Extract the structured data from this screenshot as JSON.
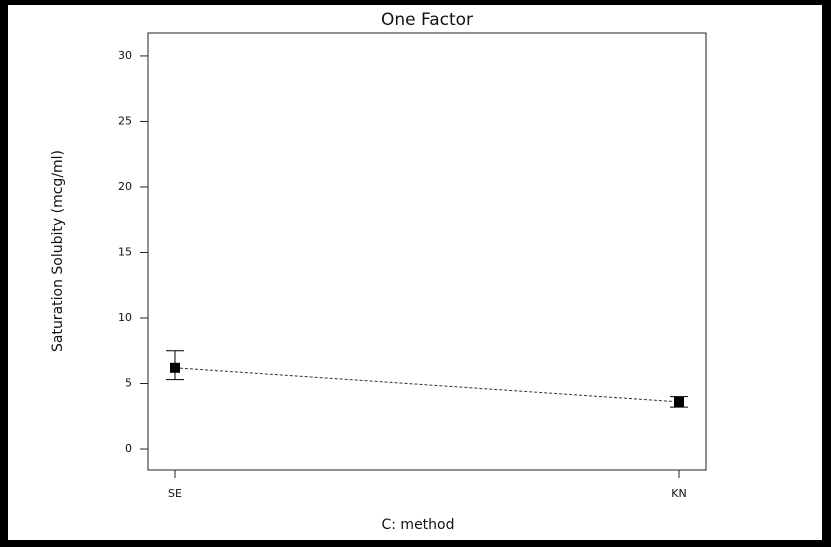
{
  "chart_data": {
    "type": "errorbar",
    "title": "One Factor",
    "x_label": "C: method",
    "y_label": "Saturation Solubity (mcg/ml)",
    "categories": [
      "SE",
      "KN"
    ],
    "values": [
      6.2,
      3.6
    ],
    "lower": [
      5.3,
      3.2
    ],
    "upper": [
      7.5,
      4.0
    ],
    "color": "#000000",
    "ylim": [
      -1.6,
      31.75
    ],
    "yticks": [
      0,
      5,
      10,
      15,
      20,
      25,
      30
    ],
    "grid": false
  }
}
